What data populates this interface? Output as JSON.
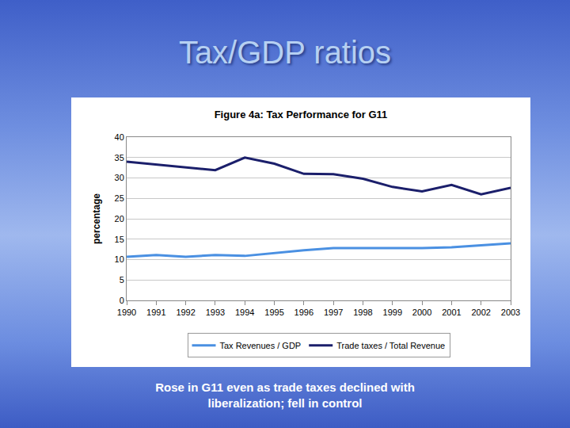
{
  "slide_title": "Tax/GDP ratios",
  "caption": "Rose in G11 even as trade taxes declined with liberalization; fell in control",
  "chart_data": {
    "type": "line",
    "title": "Figure 4a: Tax Performance for G11",
    "y_label": "percentage",
    "categories": [
      "1990",
      "1991",
      "1992",
      "1993",
      "1994",
      "1995",
      "1996",
      "1997",
      "1998",
      "1999",
      "2000",
      "2001",
      "2002",
      "2003"
    ],
    "series": [
      {
        "name": "Tax Revenues / GDP",
        "color": "#4a90e2",
        "values": [
          10.7,
          11.1,
          10.7,
          11.1,
          10.9,
          11.6,
          12.3,
          12.8,
          12.8,
          12.8,
          12.8,
          13.0,
          13.5,
          14.0
        ]
      },
      {
        "name": "Trade taxes / Total Revenue",
        "color": "#1b1f6b",
        "values": [
          34.0,
          33.3,
          32.6,
          31.9,
          35.0,
          33.5,
          31.0,
          30.9,
          29.8,
          27.8,
          26.7,
          28.3,
          26.0,
          27.6
        ]
      }
    ],
    "ylim": [
      0,
      40
    ],
    "yticks": [
      0,
      5,
      10,
      15,
      20,
      25,
      30,
      35,
      40
    ],
    "grid": true,
    "legend": "bottom"
  }
}
